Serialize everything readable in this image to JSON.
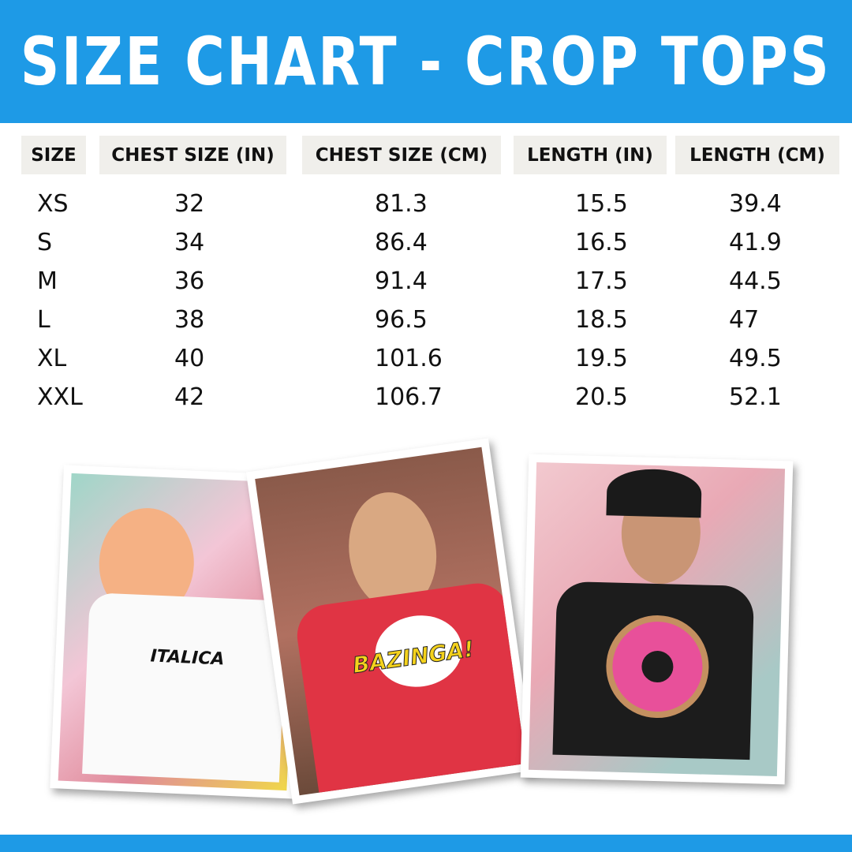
{
  "title": "SIZE CHART - CROP TOPS",
  "colors": {
    "brand": "#1e9ae6",
    "header_cell": "#f0efeb"
  },
  "table": {
    "headers": [
      "SIZE",
      "CHEST SIZE (IN)",
      "CHEST SIZE (CM)",
      "LENGTH (IN)",
      "LENGTH (CM)"
    ],
    "rows": [
      [
        "XS",
        "32",
        "81.3",
        "15.5",
        "39.4"
      ],
      [
        "S",
        "34",
        "86.4",
        "16.5",
        "41.9"
      ],
      [
        "M",
        "36",
        "91.4",
        "17.5",
        "44.5"
      ],
      [
        "L",
        "38",
        "96.5",
        "18.5",
        "47"
      ],
      [
        "XL",
        "40",
        "101.6",
        "19.5",
        "49.5"
      ],
      [
        "XXL",
        "42",
        "106.7",
        "20.5",
        "52.1"
      ]
    ]
  },
  "photos": [
    {
      "alt": "model-white-crop-top",
      "shirt_logo": "ITALICA"
    },
    {
      "alt": "model-red-crop-top",
      "shirt_logo": "BAZINGA!"
    },
    {
      "alt": "model-black-donut-crop-top"
    }
  ]
}
